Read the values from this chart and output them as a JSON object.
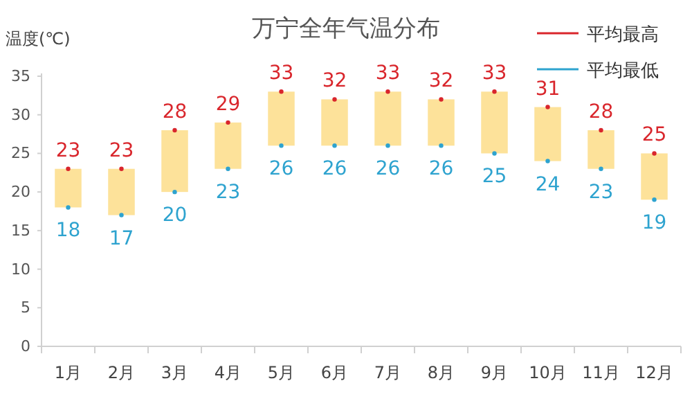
{
  "chart_data": {
    "type": "bar",
    "title": "万宁全年气温分布",
    "ylabel": "温度(℃)",
    "categories": [
      "1月",
      "2月",
      "3月",
      "4月",
      "5月",
      "6月",
      "7月",
      "8月",
      "9月",
      "10月",
      "11月",
      "12月"
    ],
    "ylim": [
      0,
      35
    ],
    "yticks": [
      0,
      5,
      10,
      15,
      20,
      25,
      30,
      35
    ],
    "grid": false,
    "legend": "top right",
    "series": [
      {
        "type": "bar",
        "color": "#fde29a",
        "base": [
          18,
          17,
          20,
          23,
          26,
          26,
          26,
          26,
          25,
          24,
          23,
          19
        ],
        "values": [
          5,
          6,
          8,
          6,
          7,
          6,
          7,
          6,
          8,
          7,
          5,
          6
        ]
      },
      {
        "type": "scatter",
        "name": "平均最高",
        "color": "#d9262c",
        "marker": "circle",
        "values": [
          23,
          23,
          28,
          29,
          33,
          32,
          33,
          32,
          33,
          31,
          28,
          25
        ],
        "value_labels": [
          "23",
          "23",
          "28",
          "29",
          "33",
          "32",
          "33",
          "32",
          "33",
          "31",
          "28",
          "25"
        ]
      },
      {
        "type": "scatter",
        "name": "平均最低",
        "color": "#2ea3cf",
        "marker": "circle",
        "values": [
          18,
          17,
          20,
          23,
          26,
          26,
          26,
          26,
          25,
          24,
          23,
          19
        ],
        "value_labels": [
          "18",
          "17",
          "20",
          "23",
          "26",
          "26",
          "26",
          "26",
          "25",
          "24",
          "23",
          "19"
        ]
      }
    ]
  }
}
